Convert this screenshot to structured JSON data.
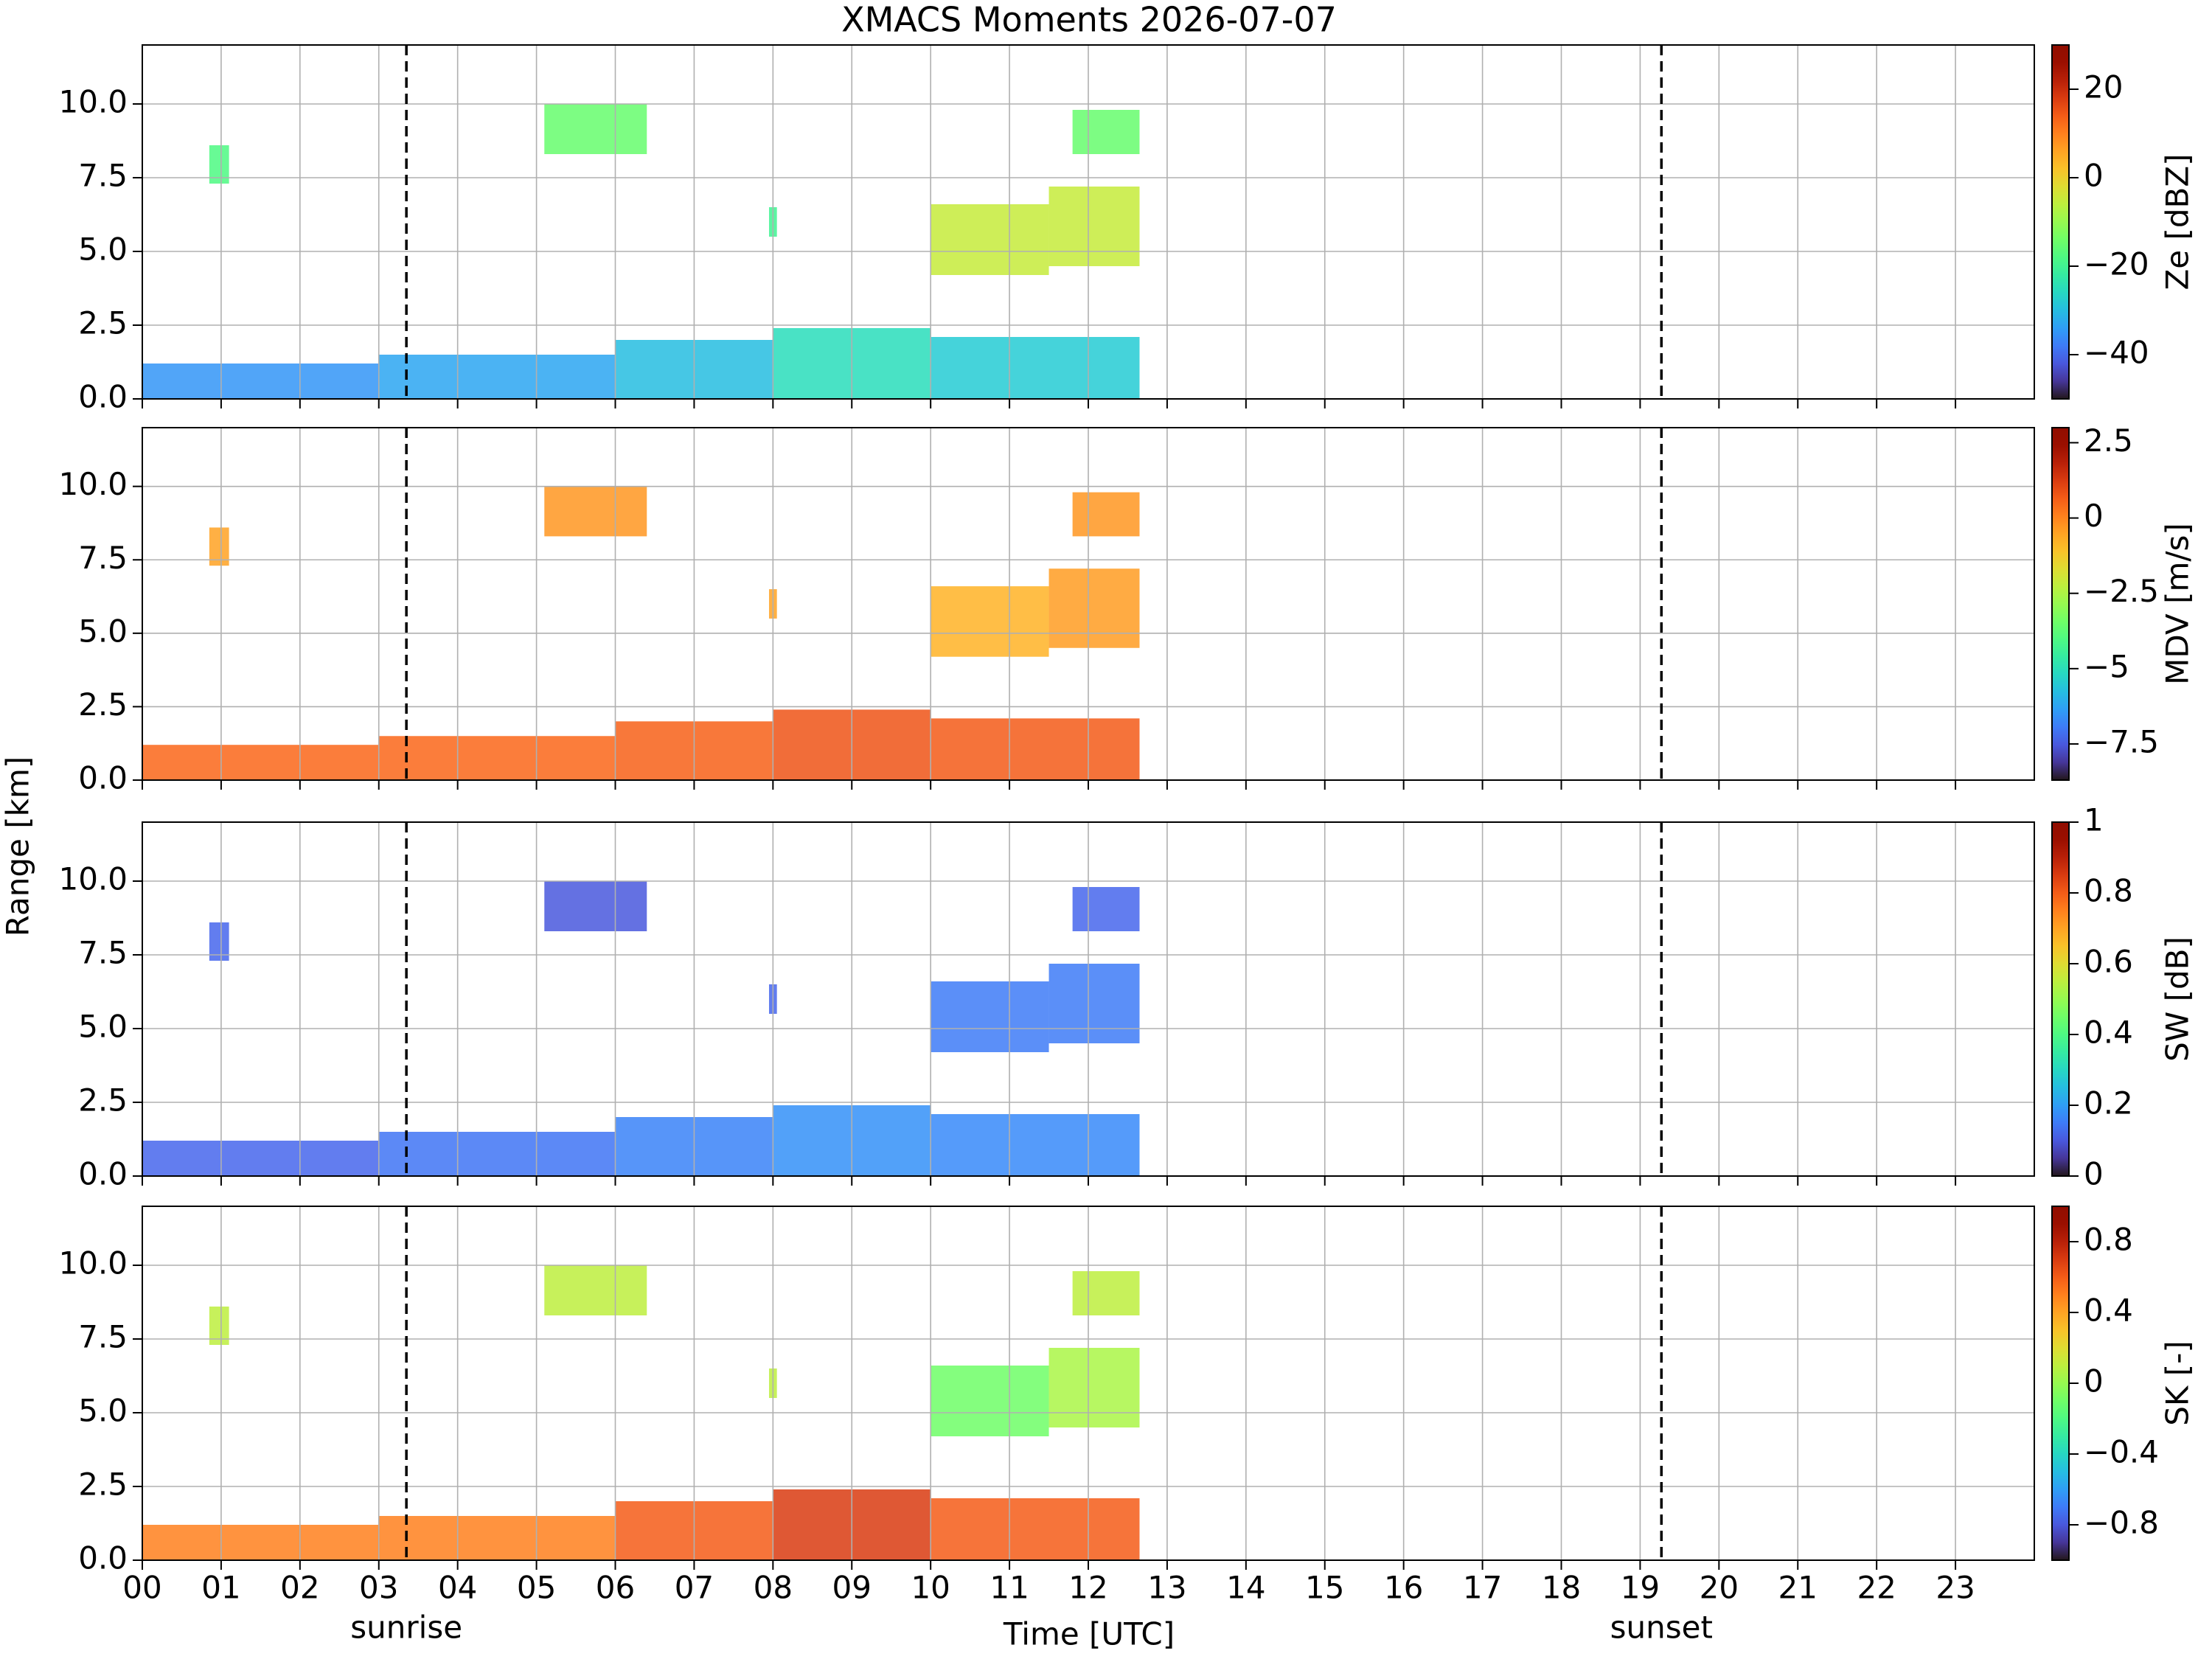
{
  "figure": {
    "title": "XMACS Moments 2026-07-07",
    "xlabel": "Time [UTC]",
    "ylabel": "Range [km]",
    "xlim": [
      0,
      24
    ],
    "xticks": [
      {
        "value": 0,
        "label": "00"
      },
      {
        "value": 1,
        "label": "01"
      },
      {
        "value": 2,
        "label": "02"
      },
      {
        "value": 3,
        "label": "03"
      },
      {
        "value": 4,
        "label": "04"
      },
      {
        "value": 5,
        "label": "05"
      },
      {
        "value": 6,
        "label": "06"
      },
      {
        "value": 7,
        "label": "07"
      },
      {
        "value": 8,
        "label": "08"
      },
      {
        "value": 9,
        "label": "09"
      },
      {
        "value": 10,
        "label": "10"
      },
      {
        "value": 11,
        "label": "11"
      },
      {
        "value": 12,
        "label": "12"
      },
      {
        "value": 13,
        "label": "13"
      },
      {
        "value": 14,
        "label": "14"
      },
      {
        "value": 15,
        "label": "15"
      },
      {
        "value": 16,
        "label": "16"
      },
      {
        "value": 17,
        "label": "17"
      },
      {
        "value": 18,
        "label": "18"
      },
      {
        "value": 19,
        "label": "19"
      },
      {
        "value": 20,
        "label": "20"
      },
      {
        "value": 21,
        "label": "21"
      },
      {
        "value": 22,
        "label": "22"
      },
      {
        "value": 23,
        "label": "23"
      }
    ],
    "markers": [
      {
        "label": "sunrise",
        "x": 3.35
      },
      {
        "label": "sunset",
        "x": 19.27
      }
    ]
  },
  "chart_data": [
    {
      "type": "heatmap",
      "ylim": [
        0,
        12
      ],
      "yticks": [
        {
          "value": 0,
          "label": "0.0"
        },
        {
          "value": 2.5,
          "label": "2.5"
        },
        {
          "value": 5,
          "label": "5.0"
        },
        {
          "value": 7.5,
          "label": "7.5"
        },
        {
          "value": 10,
          "label": "10.0"
        }
      ],
      "colorbar": {
        "label": "Ze [dBZ]",
        "lim": [
          -50,
          30
        ],
        "ticks": [
          20,
          0,
          {
            "value": -20,
            "label": "−20"
          },
          {
            "value": -40,
            "label": "−40"
          }
        ]
      },
      "cells": [
        {
          "x": [
            0,
            3
          ],
          "y": [
            0,
            1.2
          ],
          "value": -35
        },
        {
          "x": [
            3,
            6
          ],
          "y": [
            0,
            1.5
          ],
          "value": -33
        },
        {
          "x": [
            6,
            8
          ],
          "y": [
            0,
            2.0
          ],
          "value": -30
        },
        {
          "x": [
            8,
            10
          ],
          "y": [
            0,
            2.4
          ],
          "value": -25
        },
        {
          "x": [
            10,
            12.65
          ],
          "y": [
            0,
            2.1
          ],
          "value": -28
        },
        {
          "x": [
            0.85,
            1.1
          ],
          "y": [
            7.3,
            8.6
          ],
          "value": -18
        },
        {
          "x": [
            5.1,
            6.4
          ],
          "y": [
            8.3,
            10
          ],
          "value": -15
        },
        {
          "x": [
            7.95,
            8.05
          ],
          "y": [
            5.5,
            6.5
          ],
          "value": -20
        },
        {
          "x": [
            10,
            11.5
          ],
          "y": [
            4.2,
            6.6
          ],
          "value": -5
        },
        {
          "x": [
            11.5,
            12.65
          ],
          "y": [
            4.5,
            7.2
          ],
          "value": -5
        },
        {
          "x": [
            11.8,
            12.65
          ],
          "y": [
            8.3,
            9.8
          ],
          "value": -15
        }
      ]
    },
    {
      "type": "heatmap",
      "ylim": [
        0,
        12
      ],
      "yticks": [
        {
          "value": 0,
          "label": "0.0"
        },
        {
          "value": 2.5,
          "label": "2.5"
        },
        {
          "value": 5,
          "label": "5.0"
        },
        {
          "value": 7.5,
          "label": "7.5"
        },
        {
          "value": 10,
          "label": "10.0"
        }
      ],
      "colorbar": {
        "label": "MDV [m/s]",
        "lim": [
          -8.7,
          3
        ],
        "ticks": [
          2.5,
          0,
          {
            "value": -2.5,
            "label": "−2.5"
          },
          {
            "value": -5,
            "label": "−5"
          },
          {
            "value": -7.5,
            "label": "−7.5"
          }
        ]
      },
      "cells": [
        {
          "x": [
            0,
            3
          ],
          "y": [
            0,
            1.2
          ],
          "value": 0.5
        },
        {
          "x": [
            3,
            6
          ],
          "y": [
            0,
            1.5
          ],
          "value": 0.5
        },
        {
          "x": [
            6,
            8
          ],
          "y": [
            0,
            2.0
          ],
          "value": 0.6
        },
        {
          "x": [
            8,
            10
          ],
          "y": [
            0,
            2.4
          ],
          "value": 0.8
        },
        {
          "x": [
            10,
            12.65
          ],
          "y": [
            0,
            2.1
          ],
          "value": 0.7
        },
        {
          "x": [
            0.85,
            1.1
          ],
          "y": [
            7.3,
            8.6
          ],
          "value": -0.5
        },
        {
          "x": [
            5.1,
            6.4
          ],
          "y": [
            8.3,
            10
          ],
          "value": -0.3
        },
        {
          "x": [
            7.95,
            8.05
          ],
          "y": [
            5.5,
            6.5
          ],
          "value": -0.5
        },
        {
          "x": [
            10,
            11.5
          ],
          "y": [
            4.2,
            6.6
          ],
          "value": -0.8
        },
        {
          "x": [
            11.5,
            12.65
          ],
          "y": [
            4.5,
            7.2
          ],
          "value": -0.4
        },
        {
          "x": [
            11.8,
            12.65
          ],
          "y": [
            8.3,
            9.8
          ],
          "value": -0.3
        }
      ]
    },
    {
      "type": "heatmap",
      "ylim": [
        0,
        12
      ],
      "yticks": [
        {
          "value": 0,
          "label": "0.0"
        },
        {
          "value": 2.5,
          "label": "2.5"
        },
        {
          "value": 5,
          "label": "5.0"
        },
        {
          "value": 7.5,
          "label": "7.5"
        },
        {
          "value": 10,
          "label": "10.0"
        }
      ],
      "colorbar": {
        "label": "SW [dB]",
        "lim": [
          0,
          1
        ],
        "ticks": [
          1,
          0.8,
          0.6,
          0.4,
          0.2,
          0
        ]
      },
      "cells": [
        {
          "x": [
            0,
            3
          ],
          "y": [
            0,
            1.2
          ],
          "value": 0.12
        },
        {
          "x": [
            3,
            6
          ],
          "y": [
            0,
            1.5
          ],
          "value": 0.14
        },
        {
          "x": [
            6,
            8
          ],
          "y": [
            0,
            2.0
          ],
          "value": 0.16
        },
        {
          "x": [
            8,
            10
          ],
          "y": [
            0,
            2.4
          ],
          "value": 0.18
        },
        {
          "x": [
            10,
            12.65
          ],
          "y": [
            0,
            2.1
          ],
          "value": 0.17
        },
        {
          "x": [
            0.85,
            1.1
          ],
          "y": [
            7.3,
            8.6
          ],
          "value": 0.12
        },
        {
          "x": [
            5.1,
            6.4
          ],
          "y": [
            8.3,
            10
          ],
          "value": 0.1
        },
        {
          "x": [
            7.95,
            8.05
          ],
          "y": [
            5.5,
            6.5
          ],
          "value": 0.12
        },
        {
          "x": [
            10,
            11.5
          ],
          "y": [
            4.2,
            6.6
          ],
          "value": 0.15
        },
        {
          "x": [
            11.5,
            12.65
          ],
          "y": [
            4.5,
            7.2
          ],
          "value": 0.15
        },
        {
          "x": [
            11.8,
            12.65
          ],
          "y": [
            8.3,
            9.8
          ],
          "value": 0.12
        }
      ]
    },
    {
      "type": "heatmap",
      "ylim": [
        0,
        12
      ],
      "yticks": [
        {
          "value": 0,
          "label": "0.0"
        },
        {
          "value": 2.5,
          "label": "2.5"
        },
        {
          "value": 5,
          "label": "5.0"
        },
        {
          "value": 7.5,
          "label": "7.5"
        },
        {
          "value": 10,
          "label": "10.0"
        }
      ],
      "colorbar": {
        "label": "SK [-]",
        "lim": [
          -1,
          1
        ],
        "ticks": [
          0.8,
          0.4,
          0,
          {
            "value": -0.4,
            "label": "−0.4"
          },
          {
            "value": -0.8,
            "label": "−0.8"
          }
        ]
      },
      "cells": [
        {
          "x": [
            0,
            3
          ],
          "y": [
            0,
            1.2
          ],
          "value": 0.5
        },
        {
          "x": [
            3,
            6
          ],
          "y": [
            0,
            1.5
          ],
          "value": 0.5
        },
        {
          "x": [
            6,
            8
          ],
          "y": [
            0,
            2.0
          ],
          "value": 0.6
        },
        {
          "x": [
            8,
            10
          ],
          "y": [
            0,
            2.4
          ],
          "value": 0.7
        },
        {
          "x": [
            10,
            12.65
          ],
          "y": [
            0,
            2.1
          ],
          "value": 0.6
        },
        {
          "x": [
            0.85,
            1.1
          ],
          "y": [
            7.3,
            8.6
          ],
          "value": 0.1
        },
        {
          "x": [
            5.1,
            6.4
          ],
          "y": [
            8.3,
            10
          ],
          "value": 0.1
        },
        {
          "x": [
            7.95,
            8.05
          ],
          "y": [
            5.5,
            6.5
          ],
          "value": 0.1
        },
        {
          "x": [
            10,
            11.5
          ],
          "y": [
            4.2,
            6.6
          ],
          "value": -0.1
        },
        {
          "x": [
            11.5,
            12.65
          ],
          "y": [
            4.5,
            7.2
          ],
          "value": 0.05
        },
        {
          "x": [
            11.8,
            12.65
          ],
          "y": [
            8.3,
            9.8
          ],
          "value": 0.1
        }
      ]
    }
  ]
}
